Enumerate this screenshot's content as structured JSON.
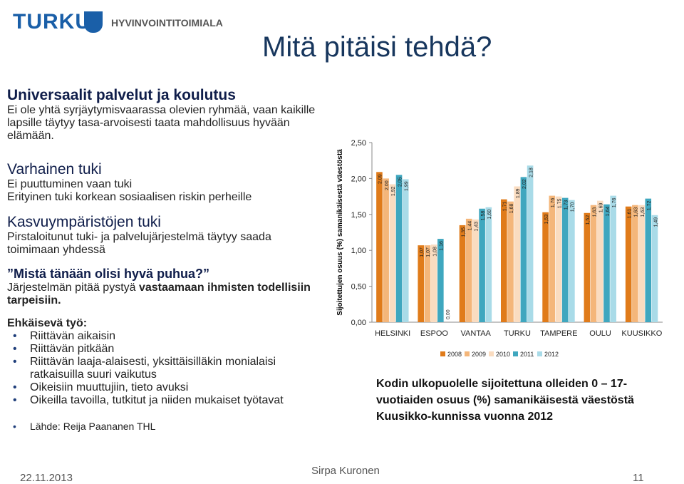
{
  "header": {
    "logo": "TURKU",
    "department": "HYVINVOINTITOIMIALA",
    "title": "Mitä pitäisi tehdä?"
  },
  "sections": [
    {
      "heading": "Universaalit palvelut ja koulutus",
      "text": "Ei ole yhtä syrjäytymisvaarassa olevien ryhmää, vaan kaikille lapsille täytyy tasa-arvoisesti taata mahdollisuus hyvään elämään."
    },
    {
      "heading": "Varhainen tuki",
      "lines": [
        "Ei puuttuminen vaan tuki",
        "Erityinen tuki korkean sosiaalisen riskin perheille"
      ]
    },
    {
      "heading": "Kasvuympäristöjen tuki",
      "text": "Pirstaloitunut tuki- ja palvelujärjestelmä täytyy saada toimimaan yhdessä"
    }
  ],
  "question": {
    "heading": "”Mistä tänään olisi hyvä puhua?”",
    "text": "Järjestelmän pitää pystyä ",
    "bold": "vastaamaan ihmisten todellisiin tarpeisiin."
  },
  "work": {
    "heading": "Ehkäisevä työ:",
    "bullets": [
      "Riittävän aikaisin",
      "Riittävän pitkään",
      "Riittävän laaja-alaisesti, yksittäisilläkin monialaisi ratkaisuilla suuri vaikutus",
      "Oikeisiin muuttujiin, tieto avuksi",
      "Oikeilla tavoilla, tutkitut ja niiden mukaiset työtavat"
    ]
  },
  "source": "Lähde: Reija Paananen THL",
  "caption": "Kodin ulkopuolelle sijoitettuna olleiden 0 – 17-vuotiaiden osuus (%) samanikäisestä väestöstä Kuusikko-kunnissa vuonna 2012",
  "footer": {
    "date": "22.11.2013",
    "author": "Sirpa Kuronen",
    "page": "11"
  },
  "chart_data": {
    "type": "bar",
    "y_label": "Sijoitettujen osuus (%) samanikäisestä väestöstä",
    "categories": [
      "HELSINKI",
      "ESPOO",
      "VANTAA",
      "TURKU",
      "TAMPERE",
      "OULU",
      "KUUSIKKO"
    ],
    "series": [
      {
        "name": "2008",
        "color": "#e07b1a",
        "values": [
          2.09,
          1.07,
          1.35,
          1.71,
          1.53,
          1.52,
          1.61
        ],
        "value_labels": [
          "2,09",
          "1,07",
          "1,35",
          "1,71",
          "1,53",
          "1,52",
          "1,61"
        ]
      },
      {
        "name": "2009",
        "color": "#f4b67a",
        "values": [
          2.0,
          1.07,
          1.44,
          1.68,
          1.76,
          1.63,
          1.63
        ],
        "value_labels": [
          "2,00",
          "1,07",
          "1,44",
          "1,68",
          "1,76",
          "1,63",
          "1,63"
        ]
      },
      {
        "name": "2010",
        "color": "#fadcc0",
        "values": [
          1.92,
          1.08,
          1.43,
          1.89,
          1.75,
          1.69,
          1.63
        ],
        "value_labels": [
          "1,92",
          "1,08",
          "1,43",
          "1,89",
          "1,75",
          "1,69",
          "1,63"
        ]
      },
      {
        "name": "2011",
        "color": "#3fa7bf",
        "values": [
          2.05,
          1.16,
          1.58,
          2.02,
          1.73,
          1.64,
          1.72
        ],
        "value_labels": [
          "2,05",
          "1,16",
          "1,58",
          "2,02",
          "1,73",
          "1,64",
          "1,72"
        ]
      },
      {
        "name": "2012",
        "color": "#a9dbe8",
        "values": [
          1.99,
          0.0,
          1.6,
          2.18,
          1.7,
          1.76,
          1.49
        ],
        "value_labels": [
          "1,99",
          "0,00",
          "1,60",
          "2,18",
          "1,70",
          "1,76",
          "1,49"
        ]
      }
    ],
    "ylim": [
      0,
      2.5
    ],
    "yticks": [
      {
        "value": 0,
        "label": "0,00"
      },
      {
        "value": 0.5,
        "label": "0,50"
      },
      {
        "value": 1,
        "label": "1,00"
      },
      {
        "value": 1.5,
        "label": "1,50"
      },
      {
        "value": 2,
        "label": "2,00"
      },
      {
        "value": 2.5,
        "label": "2,50"
      }
    ]
  }
}
